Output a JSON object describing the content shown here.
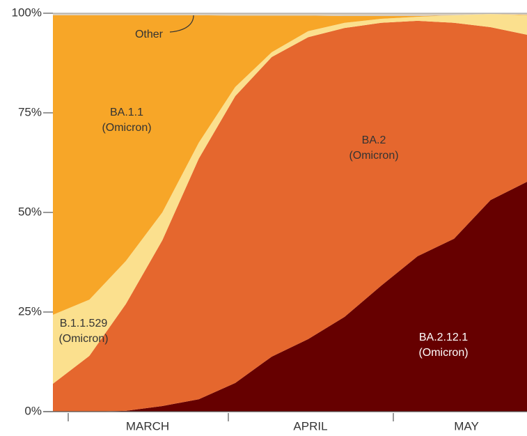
{
  "chart_data": {
    "type": "stacked_area",
    "categories": [
      null,
      null,
      null,
      null,
      null,
      null,
      null,
      null,
      null,
      null,
      null,
      null,
      null,
      null
    ],
    "x_labels": [
      "MARCH",
      "APRIL",
      "MAY"
    ],
    "ylim": [
      0,
      100
    ],
    "yticks": [
      {
        "value": 0,
        "label": "0%"
      },
      {
        "value": 25,
        "label": "25%"
      },
      {
        "value": 50,
        "label": "50%"
      },
      {
        "value": 75,
        "label": "75%"
      },
      {
        "value": 100,
        "label": "100%"
      }
    ],
    "series": [
      {
        "name": "BA.2.12.1",
        "subname": "(Omicron)",
        "color": "#660000",
        "values": [
          0,
          0,
          0.2,
          1.4,
          3.1,
          7.2,
          13.8,
          18.2,
          23.8,
          31.6,
          39.0,
          43.4,
          53.1,
          57.7
        ]
      },
      {
        "name": "BA.2",
        "subname": "(Omicron)",
        "color": "#e5672e",
        "values": [
          7.0,
          14.0,
          26.8,
          41.6,
          60.4,
          72.0,
          75.2,
          75.8,
          72.5,
          66.0,
          59.1,
          54.2,
          43.4,
          36.9
        ]
      },
      {
        "name": "B.1.1.529",
        "subname": "(Omicron)",
        "color": "#fbe08e",
        "values": [
          17.3,
          14.1,
          10.8,
          7.0,
          4.0,
          2.3,
          1.2,
          1.5,
          1.3,
          1.0,
          1.0,
          1.9,
          3.3,
          4.9
        ]
      },
      {
        "name": "BA.1.1",
        "subname": "(Omicron)",
        "color": "#f7a628",
        "values": [
          75.2,
          71.4,
          61.7,
          49.5,
          32.0,
          17.9,
          9.2,
          3.9,
          1.7,
          0.7,
          0.2,
          0,
          0,
          0.1
        ]
      },
      {
        "name": "Other",
        "color": "#d9cfbf",
        "values": [
          0.5,
          0.5,
          0.5,
          0.5,
          0.5,
          0.6,
          0.6,
          0.6,
          0.7,
          0.7,
          0.7,
          0.5,
          0.2,
          0.4
        ]
      }
    ]
  }
}
